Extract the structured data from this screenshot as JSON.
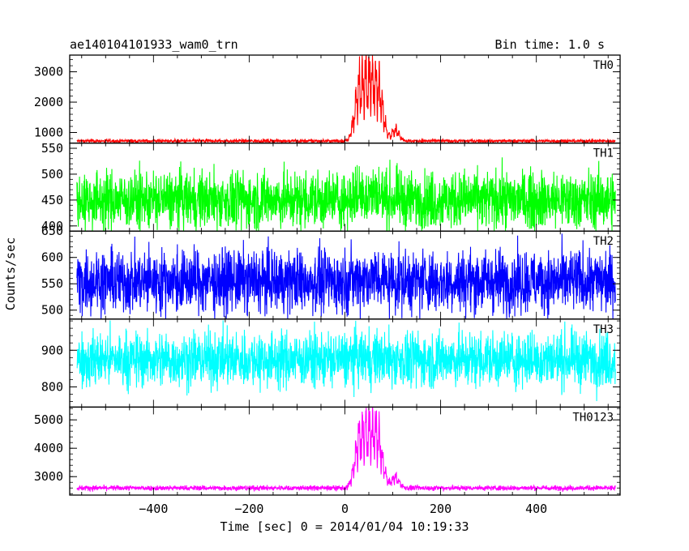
{
  "chart_data": {
    "type": "line",
    "title": "ae140104101933_wam0_trn",
    "bin_time": "Bin time: 1.0 s",
    "xlabel": "Time [sec] 0 = 2014/01/04 10:19:33",
    "ylabel": "Counts/sec",
    "xlim": [
      -575,
      575
    ],
    "x_ticks": [
      -400,
      -200,
      0,
      200,
      400
    ],
    "x_tick_labels": [
      "−400",
      "−200",
      "0",
      "200",
      "400"
    ],
    "panels": [
      {
        "name": "TH0",
        "color": "#ff0000",
        "ylim": [
          650,
          3550
        ],
        "y_ticks": [
          1000,
          2000,
          3000
        ],
        "y_tick_labels": [
          "1000",
          "2000",
          "3000"
        ],
        "base": 720,
        "noise": 28,
        "burst": 1,
        "burst_peak": 2650
      },
      {
        "name": "TH1",
        "color": "#00ff00",
        "ylim": [
          390,
          560
        ],
        "y_ticks": [
          400,
          450,
          500,
          550
        ],
        "y_tick_labels": [
          "400",
          "450",
          "500",
          "550"
        ],
        "base": 450,
        "noise": 28,
        "burst": 0,
        "burst_peak": 30
      },
      {
        "name": "TH2",
        "color": "#0000ff",
        "ylim": [
          483,
          650
        ],
        "y_ticks": [
          500,
          550,
          600,
          650
        ],
        "y_tick_labels": [
          "500",
          "550",
          "600",
          "650"
        ],
        "base": 555,
        "noise": 30,
        "burst": 0,
        "burst_peak": 15
      },
      {
        "name": "TH3",
        "color": "#00ffff",
        "ylim": [
          745,
          985
        ],
        "y_ticks": [
          800,
          900
        ],
        "y_tick_labels": [
          "800",
          "900"
        ],
        "base": 875,
        "noise": 38,
        "burst": 0,
        "burst_peak": 10
      },
      {
        "name": "TH0123",
        "color": "#ff00ff",
        "ylim": [
          2350,
          5450
        ],
        "y_ticks": [
          3000,
          4000,
          5000
        ],
        "y_tick_labels": [
          "3000",
          "4000",
          "5000"
        ],
        "base": 2600,
        "noise": 45,
        "burst": 1,
        "burst_peak": 2700
      }
    ]
  }
}
